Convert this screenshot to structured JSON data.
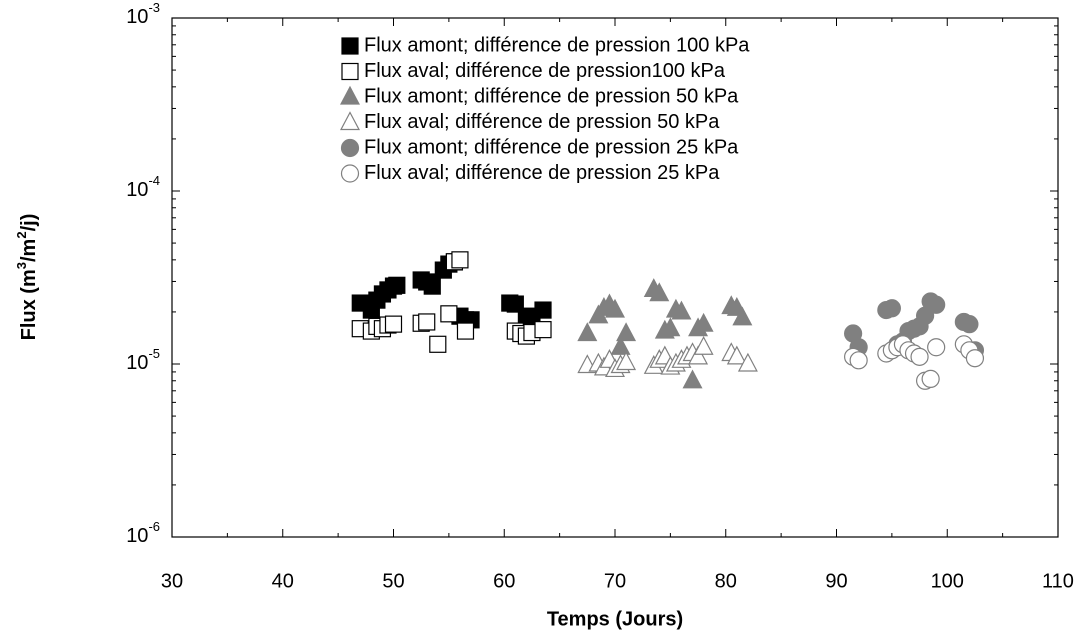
{
  "chart_data": {
    "type": "scatter",
    "xlabel": "Temps (Jours)",
    "ylabel_parts": [
      "Flux (m",
      "3",
      "/m",
      "2",
      "/j)"
    ],
    "xlim": [
      30,
      110
    ],
    "xticks": [
      30,
      40,
      50,
      60,
      70,
      80,
      90,
      100,
      110
    ],
    "ylim": [
      1e-06,
      0.001
    ],
    "yticks": [
      {
        "value": 1e-06,
        "label": "10",
        "sup": "-6"
      },
      {
        "value": 1e-05,
        "label": "10",
        "sup": "-5"
      },
      {
        "value": 0.0001,
        "label": "10",
        "sup": "-4"
      },
      {
        "value": 0.001,
        "label": "10",
        "sup": "-3"
      }
    ],
    "log_y": true,
    "series": [
      {
        "name": "Flux amont; différence de pression 100 kPa",
        "marker": "square",
        "color": "#000000",
        "filled": true,
        "x": [
          47,
          48,
          48.5,
          49,
          49.5,
          50,
          50.3,
          52.5,
          53,
          53.5,
          54.5,
          55,
          55.5,
          56,
          56.5,
          57,
          60.5,
          61,
          62,
          62.5,
          63.5
        ],
        "values": [
          2.25e-05,
          2.05e-05,
          2.34e-05,
          2.54e-05,
          2.68e-05,
          2.82e-05,
          2.85e-05,
          3.06e-05,
          2.98e-05,
          2.82e-05,
          3.49e-05,
          3.78e-05,
          3.89e-05,
          1.89e-05,
          1.8e-05,
          1.8e-05,
          2.25e-05,
          2.22e-05,
          1.89e-05,
          1.8e-05,
          2.05e-05
        ]
      },
      {
        "name": "Flux aval; différence de pression100 kPa",
        "marker": "square",
        "color": "#000000",
        "filled": false,
        "x": [
          47,
          48,
          48.5,
          49,
          49.5,
          50,
          52.5,
          53,
          54,
          55,
          55.5,
          56,
          56.5,
          61,
          61.5,
          62,
          62.5,
          63.5
        ],
        "values": [
          1.6e-05,
          1.55e-05,
          1.65e-05,
          1.6e-05,
          1.68e-05,
          1.7e-05,
          1.72e-05,
          1.75e-05,
          1.3e-05,
          1.95e-05,
          3.9e-05,
          4e-05,
          1.55e-05,
          1.55e-05,
          1.5e-05,
          1.45e-05,
          1.52e-05,
          1.58e-05
        ]
      },
      {
        "name": "Flux amont; différence de pression 50 kPa",
        "marker": "triangle",
        "color": "#808080",
        "filled": true,
        "x": [
          67.5,
          68.5,
          69,
          69.5,
          70,
          70.5,
          71,
          73.5,
          74,
          74.5,
          75,
          75.5,
          76,
          77,
          77.5,
          78,
          80.5,
          81,
          81.5
        ],
        "values": [
          1.5e-05,
          1.9e-05,
          2.1e-05,
          2.2e-05,
          2.05e-05,
          1.25e-05,
          1.5e-05,
          2.7e-05,
          2.55e-05,
          1.55e-05,
          1.6e-05,
          2.05e-05,
          2e-05,
          8e-06,
          1.6e-05,
          1.7e-05,
          2.15e-05,
          2.1e-05,
          1.85e-05
        ]
      },
      {
        "name": "Flux aval; différence de pression 50 kPa",
        "marker": "triangle",
        "color": "#808080",
        "filled": false,
        "x": [
          67.5,
          68.5,
          69,
          69.5,
          70,
          70.5,
          71,
          73.5,
          74,
          74.5,
          75,
          75.5,
          76,
          76.5,
          77,
          77.5,
          78,
          80.5,
          81,
          82
        ],
        "values": [
          9.8e-06,
          1e-05,
          9.5e-06,
          1.05e-05,
          9.3e-06,
          9.8e-06,
          1.02e-05,
          9.7e-06,
          1.05e-05,
          1.1e-05,
          9.6e-06,
          1e-05,
          1.05e-05,
          1.1e-05,
          1.15e-05,
          1.1e-05,
          1.25e-05,
          1.15e-05,
          1.1e-05,
          1e-05
        ]
      },
      {
        "name": "Flux amont; différence de pression 25 kPa",
        "marker": "circle",
        "color": "#808080",
        "filled": true,
        "x": [
          91.5,
          92,
          94.5,
          95,
          95.5,
          96,
          96.5,
          97,
          97.5,
          98,
          98.5,
          99,
          101.5,
          102,
          102.5
        ],
        "values": [
          1.5e-05,
          1.25e-05,
          2.05e-05,
          2.1e-05,
          1.3e-05,
          1.35e-05,
          1.55e-05,
          1.6e-05,
          1.65e-05,
          1.9e-05,
          2.3e-05,
          2.2e-05,
          1.75e-05,
          1.7e-05,
          1.2e-05
        ]
      },
      {
        "name": "Flux aval; différence de pression 25 kPa",
        "marker": "circle",
        "color": "#808080",
        "filled": false,
        "x": [
          91.5,
          92,
          94.5,
          95,
          95.5,
          96,
          96.5,
          97,
          97.5,
          98,
          98.5,
          99,
          101.5,
          102,
          102.5
        ],
        "values": [
          1.1e-05,
          1.05e-05,
          1.15e-05,
          1.2e-05,
          1.25e-05,
          1.3e-05,
          1.2e-05,
          1.15e-05,
          1.1e-05,
          8e-06,
          8.2e-06,
          1.25e-05,
          1.3e-05,
          1.2e-05,
          1.08e-05
        ]
      }
    ]
  }
}
